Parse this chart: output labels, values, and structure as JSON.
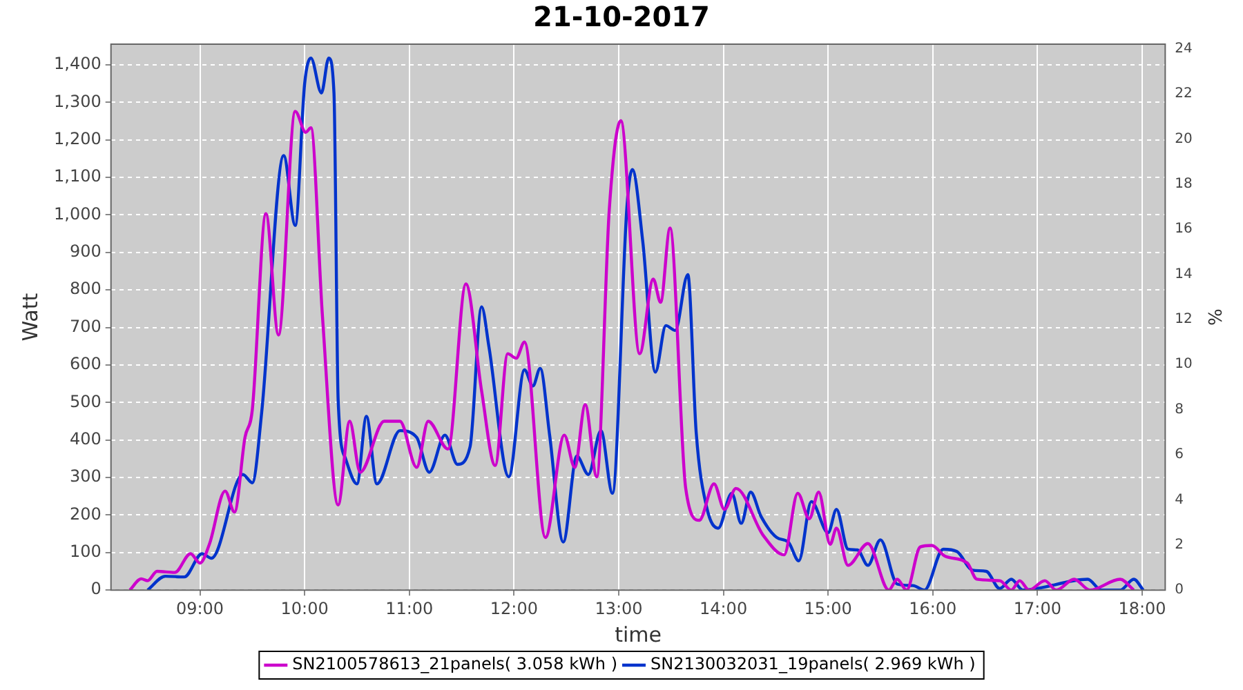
{
  "chart_data": {
    "type": "line",
    "title": "21-10-2017",
    "xlabel": "time",
    "ylabel": "Watt",
    "y2label": "%",
    "xlim": [
      8.15,
      18.22
    ],
    "xticks": [
      {
        "value": 9,
        "label": "09:00"
      },
      {
        "value": 10,
        "label": "10:00"
      },
      {
        "value": 11,
        "label": "11:00"
      },
      {
        "value": 12,
        "label": "12:00"
      },
      {
        "value": 13,
        "label": "13:00"
      },
      {
        "value": 14,
        "label": "14:00"
      },
      {
        "value": 15,
        "label": "15:00"
      },
      {
        "value": 16,
        "label": "16:00"
      },
      {
        "value": 17,
        "label": "17:00"
      },
      {
        "value": 18,
        "label": "18:00"
      }
    ],
    "ylim": [
      0,
      1455
    ],
    "yticks": [
      0,
      100,
      200,
      300,
      400,
      500,
      600,
      700,
      800,
      900,
      {
        "value": 1000,
        "label": "1,000"
      },
      {
        "value": 1100,
        "label": "1,100"
      },
      {
        "value": 1200,
        "label": "1,200"
      },
      {
        "value": 1300,
        "label": "1,300"
      },
      {
        "value": 1400,
        "label": "1,400"
      }
    ],
    "y2lim": [
      0,
      24.2
    ],
    "y2ticks": [
      0,
      2,
      4,
      6,
      8,
      10,
      12,
      14,
      16,
      18,
      20,
      22,
      24
    ],
    "grid": true,
    "legend": "bottom",
    "series": [
      {
        "name": "SN2100578613_21panels( 3.058 kWh )",
        "color": "#cc00cc",
        "x": [
          8.33,
          8.44,
          8.5,
          8.59,
          8.76,
          8.91,
          9.0,
          9.09,
          9.24,
          9.33,
          9.43,
          9.5,
          9.63,
          9.75,
          9.91,
          10.01,
          10.06,
          10.17,
          10.32,
          10.43,
          10.53,
          10.76,
          10.91,
          11.07,
          11.18,
          11.37,
          11.54,
          11.69,
          11.82,
          11.94,
          12.02,
          12.1,
          12.3,
          12.48,
          12.58,
          12.68,
          12.79,
          12.91,
          13.02,
          13.2,
          13.33,
          13.4,
          13.49,
          13.64,
          13.77,
          13.91,
          14.01,
          14.12,
          14.38,
          14.58,
          14.71,
          14.82,
          14.91,
          15.02,
          15.08,
          15.19,
          15.38,
          15.58,
          15.66,
          15.75,
          15.88,
          15.99,
          16.12,
          16.33,
          16.42,
          16.64,
          16.75,
          16.83,
          16.92,
          17.07,
          17.18,
          17.35,
          17.5,
          17.79,
          17.92
        ],
        "values": [
          0,
          30,
          25,
          50,
          47,
          97,
          72,
          122,
          264,
          208,
          407,
          481,
          1003,
          680,
          1276,
          1220,
          1232,
          730,
          227,
          450,
          314,
          450,
          450,
          327,
          450,
          376,
          816,
          531,
          332,
          630,
          618,
          661,
          140,
          413,
          327,
          494,
          302,
          1015,
          1251,
          630,
          829,
          767,
          965,
          271,
          186,
          283,
          215,
          271,
          146,
          94,
          258,
          190,
          261,
          122,
          165,
          66,
          124,
          0,
          29,
          0,
          115,
          119,
          90,
          72,
          29,
          25,
          0,
          25,
          0,
          25,
          0,
          29,
          0,
          29,
          0
        ]
      },
      {
        "name": "SN2130032031_19panels( 2.969 kWh )",
        "color": "#0033cc",
        "x": [
          8.5,
          8.67,
          8.85,
          9.02,
          9.11,
          9.41,
          9.5,
          9.59,
          9.8,
          9.91,
          10.0,
          10.06,
          10.16,
          10.23,
          10.28,
          10.32,
          10.39,
          10.5,
          10.59,
          10.69,
          10.91,
          11.07,
          11.19,
          11.34,
          11.46,
          11.58,
          11.69,
          11.76,
          11.95,
          12.1,
          12.18,
          12.25,
          12.34,
          12.47,
          12.6,
          12.71,
          12.83,
          12.94,
          13.08,
          13.13,
          13.23,
          13.35,
          13.45,
          13.54,
          13.66,
          13.74,
          13.84,
          13.95,
          14.08,
          14.17,
          14.26,
          14.36,
          14.51,
          14.62,
          14.72,
          14.84,
          15.0,
          15.08,
          15.19,
          15.28,
          15.38,
          15.5,
          15.66,
          15.81,
          15.92,
          16.1,
          16.23,
          16.38,
          16.51,
          16.64,
          16.75,
          16.86,
          17.48,
          17.61,
          17.79,
          17.92,
          18.01
        ],
        "values": [
          0,
          37,
          35,
          97,
          85,
          308,
          286,
          475,
          1158,
          972,
          1350,
          1418,
          1325,
          1418,
          1325,
          506,
          351,
          283,
          463,
          283,
          425,
          407,
          314,
          413,
          335,
          382,
          755,
          649,
          302,
          587,
          544,
          591,
          413,
          128,
          357,
          308,
          425,
          258,
          1028,
          1121,
          928,
          581,
          705,
          692,
          841,
          420,
          221,
          165,
          258,
          178,
          261,
          196,
          140,
          128,
          78,
          236,
          153,
          215,
          109,
          107,
          66,
          134,
          16,
          12,
          0,
          109,
          103,
          53,
          50,
          4,
          29,
          0,
          29,
          0,
          0,
          29,
          0
        ]
      }
    ]
  }
}
